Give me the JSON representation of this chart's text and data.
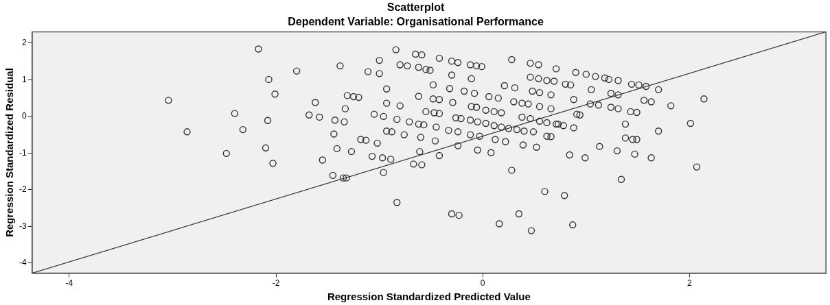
{
  "chart_data": {
    "type": "scatter",
    "title": "Scatterplot",
    "subtitle": "Dependent Variable: Organisational Performance",
    "xlabel": "Regression Standardized Predicted Value",
    "ylabel": "Regression Standardized Residual",
    "xlim": [
      -4.36,
      3.32
    ],
    "ylim": [
      -4.28,
      2.31
    ],
    "xticks": [
      -4,
      -2,
      0,
      2
    ],
    "yticks": [
      -4,
      -3,
      -2,
      -1,
      0,
      1,
      2
    ],
    "grid": false,
    "legend": false,
    "marker": "circle",
    "series": [
      {
        "color": "#333333",
        "x": [
          -2.17,
          -1.8,
          -2.07,
          -2.01,
          -3.04,
          -2.4,
          -2.08,
          -2.86,
          -2.32,
          -2.1,
          -2.48,
          -2.03,
          -1.38,
          -0.84,
          -1.0,
          -1.11,
          -1.0,
          -0.65,
          -0.59,
          -0.42,
          -0.3,
          -0.24,
          -0.12,
          -0.06,
          -0.01,
          -0.8,
          -0.73,
          -0.62,
          -0.55,
          -0.51,
          -0.3,
          -0.11,
          0.28,
          0.46,
          0.54,
          0.71,
          0.46,
          0.54,
          0.62,
          0.69,
          0.21,
          0.31,
          0.48,
          0.55,
          0.66,
          -0.48,
          -0.32,
          -0.18,
          -0.08,
          0.06,
          0.15,
          -0.93,
          -1.31,
          -1.25,
          -1.2,
          -1.62,
          -1.33,
          -0.93,
          -0.8,
          -0.62,
          -0.48,
          -0.42,
          -0.29,
          -0.11,
          -0.06,
          0.03,
          0.11,
          0.18,
          0.3,
          0.38,
          0.44,
          0.55,
          0.66,
          -0.55,
          -0.47,
          -0.42,
          -0.26,
          -0.21,
          -0.12,
          -0.05,
          0.03,
          0.11,
          0.18,
          0.25,
          0.33,
          0.4,
          0.49,
          0.62,
          0.66,
          0.38,
          0.46,
          0.55,
          0.62,
          0.71,
          -1.05,
          -0.96,
          -0.83,
          -0.71,
          -0.62,
          -0.57,
          -0.45,
          -0.33,
          -0.24,
          -0.12,
          -0.03,
          -1.68,
          -1.58,
          -1.43,
          -1.34,
          -1.44,
          -0.93,
          -0.88,
          -0.76,
          -0.6,
          -0.46,
          -1.18,
          -1.13,
          -1.02,
          -1.41,
          -1.27,
          -1.55,
          -1.07,
          -0.97,
          -0.89,
          -0.61,
          -0.42,
          -0.67,
          -0.59,
          -0.24,
          -0.05,
          0.08,
          0.12,
          0.22,
          0.39,
          0.52,
          0.9,
          1.0,
          1.09,
          1.18,
          1.22,
          1.31,
          1.44,
          1.51,
          1.58,
          1.7,
          0.8,
          0.85,
          1.05,
          1.24,
          1.31,
          0.88,
          1.04,
          1.12,
          1.24,
          1.31,
          1.43,
          1.49,
          1.56,
          1.63,
          1.82,
          2.14,
          0.91,
          0.94,
          0.73,
          0.78,
          0.88,
          1.38,
          1.7,
          2.01,
          1.38,
          1.45,
          1.49,
          1.13,
          1.3,
          1.47,
          1.63,
          0.84,
          0.99,
          2.07,
          -1.45,
          -1.35,
          -1.32,
          -0.96,
          -0.83,
          -0.3,
          -0.23,
          0.28,
          0.16,
          0.35,
          0.47,
          0.6,
          0.79,
          0.87,
          1.34
        ],
        "values": [
          1.84,
          1.24,
          1.01,
          0.61,
          0.44,
          0.08,
          -0.11,
          -0.42,
          -0.36,
          -0.86,
          -1.01,
          -1.28,
          1.38,
          1.82,
          1.53,
          1.22,
          1.17,
          1.7,
          1.68,
          1.59,
          1.51,
          1.47,
          1.41,
          1.38,
          1.36,
          1.41,
          1.38,
          1.34,
          1.28,
          1.26,
          1.13,
          1.03,
          1.55,
          1.45,
          1.41,
          1.3,
          1.07,
          1.03,
          0.98,
          0.96,
          0.84,
          0.78,
          0.69,
          0.65,
          0.59,
          0.86,
          0.76,
          0.69,
          0.63,
          0.54,
          0.5,
          0.75,
          0.57,
          0.54,
          0.52,
          0.38,
          0.21,
          0.36,
          0.29,
          0.55,
          0.48,
          0.46,
          0.38,
          0.27,
          0.25,
          0.17,
          0.13,
          0.1,
          0.4,
          0.36,
          0.34,
          0.27,
          0.21,
          0.13,
          0.1,
          0.08,
          -0.04,
          -0.06,
          -0.1,
          -0.15,
          -0.19,
          -0.25,
          -0.29,
          -0.33,
          -0.36,
          -0.4,
          -0.42,
          -0.54,
          -0.55,
          -0.02,
          -0.06,
          -0.13,
          -0.17,
          -0.21,
          0.06,
          0.0,
          -0.08,
          -0.15,
          -0.21,
          -0.23,
          -0.29,
          -0.38,
          -0.42,
          -0.5,
          -0.54,
          0.04,
          -0.02,
          -0.1,
          -0.15,
          -0.48,
          -0.4,
          -0.42,
          -0.5,
          -0.57,
          -0.67,
          -0.63,
          -0.65,
          -0.73,
          -0.88,
          -0.96,
          -1.19,
          -1.09,
          -1.13,
          -1.17,
          -0.96,
          -1.07,
          -1.3,
          -1.32,
          -0.8,
          -0.92,
          -0.99,
          -0.63,
          -0.69,
          -0.78,
          -0.84,
          1.2,
          1.15,
          1.09,
          1.05,
          1.01,
          0.98,
          0.88,
          0.86,
          0.82,
          0.73,
          0.88,
          0.86,
          0.73,
          0.63,
          0.59,
          0.46,
          0.34,
          0.31,
          0.25,
          0.21,
          0.13,
          0.11,
          0.44,
          0.4,
          0.29,
          0.48,
          0.06,
          0.04,
          -0.21,
          -0.25,
          -0.31,
          -0.21,
          -0.4,
          -0.19,
          -0.59,
          -0.63,
          -0.63,
          -0.82,
          -0.94,
          -1.03,
          -1.13,
          -1.05,
          -1.13,
          -1.38,
          -1.61,
          -1.68,
          -1.68,
          -1.53,
          -2.35,
          -2.66,
          -2.7,
          -1.47,
          -2.93,
          -2.66,
          -3.12,
          -2.05,
          -2.16,
          -2.96,
          -1.72
        ]
      },
      {
        "type": "line",
        "color": "#333333",
        "marker": "none",
        "x": [
          -4.36,
          3.32
        ],
        "values": [
          -4.28,
          2.31
        ]
      }
    ]
  }
}
